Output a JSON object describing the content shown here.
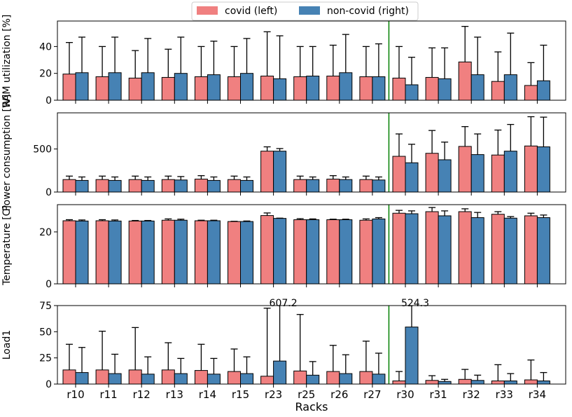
{
  "legend": {
    "items": [
      {
        "label": "covid (left)",
        "color": "#f08080"
      },
      {
        "label": "non-covid (right)",
        "color": "#4682b4"
      }
    ]
  },
  "xlabel": "Racks",
  "chart_data": {
    "type": "bar",
    "categories": [
      "r10",
      "r11",
      "r12",
      "r13",
      "r14",
      "r15",
      "r23",
      "r25",
      "r26",
      "r27",
      "r30",
      "r31",
      "r32",
      "r33",
      "r34"
    ],
    "divider_after": "r27",
    "divider_color": "#008000",
    "series_colors": {
      "covid": "#f08080",
      "non_covid": "#4682b4"
    },
    "panels": [
      {
        "id": "ram",
        "ylabel": "RAM utilization [%]",
        "ylim": [
          0,
          59
        ],
        "yticks": [
          0,
          20,
          40
        ],
        "covid": [
          19.5,
          17.5,
          16.5,
          17,
          17.5,
          17.5,
          18,
          17.5,
          18,
          17.5,
          16.5,
          17,
          28.5,
          14,
          11
        ],
        "covid_err": [
          43,
          40,
          37,
          38,
          40,
          40,
          51,
          40,
          41,
          40,
          40,
          39,
          55,
          36,
          28
        ],
        "noncovid": [
          20.5,
          20.5,
          20.5,
          20,
          19,
          20,
          16,
          18,
          20.5,
          17.5,
          11.5,
          16,
          19,
          19,
          14.5
        ],
        "noncovid_err": [
          47,
          47,
          46,
          47,
          44,
          46,
          48,
          40,
          49,
          42,
          32,
          39,
          47,
          50,
          41
        ]
      },
      {
        "id": "power",
        "ylabel": "Power consumption [W]",
        "ylim": [
          0,
          920
        ],
        "yticks": [
          0,
          500
        ],
        "covid": [
          145,
          145,
          145,
          145,
          150,
          145,
          475,
          145,
          150,
          145,
          415,
          450,
          530,
          430,
          535
        ],
        "covid_err": [
          185,
          185,
          185,
          185,
          190,
          185,
          525,
          185,
          190,
          185,
          675,
          715,
          760,
          720,
          875
        ],
        "noncovid": [
          135,
          135,
          135,
          140,
          135,
          135,
          475,
          145,
          145,
          140,
          340,
          375,
          435,
          475,
          525
        ],
        "noncovid_err": [
          175,
          175,
          175,
          180,
          175,
          175,
          505,
          175,
          175,
          175,
          555,
          580,
          675,
          785,
          870
        ]
      },
      {
        "id": "temp",
        "ylabel": "Temperature [C]",
        "ylim": [
          0,
          30.5
        ],
        "yticks": [
          0,
          20
        ],
        "covid": [
          24.3,
          24.3,
          24.2,
          24.5,
          24.3,
          24.0,
          26.3,
          24.7,
          24.7,
          24.5,
          27.2,
          27.8,
          27.8,
          26.8,
          26.2
        ],
        "covid_err": [
          24.7,
          24.7,
          24.4,
          25.0,
          24.5,
          24.1,
          27.3,
          25.1,
          24.9,
          25.0,
          28.3,
          29.4,
          28.9,
          27.8,
          27.2
        ],
        "noncovid": [
          24.2,
          24.2,
          24.2,
          24.5,
          24.3,
          24.0,
          25.2,
          24.7,
          24.7,
          25.0,
          27.0,
          26.2,
          25.5,
          25.3,
          25.5
        ],
        "noncovid_err": [
          24.6,
          24.6,
          24.4,
          24.9,
          24.5,
          24.2,
          25.3,
          25.0,
          24.9,
          25.5,
          28.1,
          28.1,
          27.5,
          25.9,
          26.5
        ]
      },
      {
        "id": "load",
        "ylabel": "Load1",
        "ylim": [
          0,
          75
        ],
        "yticks": [
          0,
          25,
          50,
          75
        ],
        "covid": [
          13.5,
          13.5,
          13.5,
          13.5,
          13,
          12,
          7.5,
          12.5,
          12,
          12,
          3,
          3.5,
          4.5,
          3,
          4
        ],
        "covid_err": [
          38,
          50.5,
          54,
          39.5,
          38,
          33.5,
          72.5,
          66.5,
          37,
          41,
          12,
          8,
          14,
          18.5,
          23
        ],
        "noncovid": [
          11,
          10,
          9.5,
          10,
          9.5,
          10,
          22,
          8.5,
          10,
          9.5,
          54.5,
          2.5,
          3.5,
          3,
          3
        ],
        "noncovid_err": [
          35,
          28.5,
          26,
          24.5,
          24.5,
          26,
          607.2,
          21.5,
          28,
          29.5,
          524.3,
          4.5,
          8.5,
          10,
          11
        ],
        "annotations": [
          {
            "category": "r23",
            "text": "607.2"
          },
          {
            "category": "r30",
            "text": "524.3"
          }
        ]
      }
    ]
  }
}
